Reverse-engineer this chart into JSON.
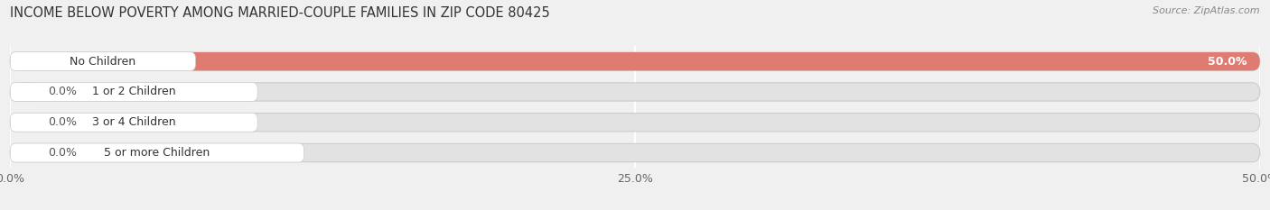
{
  "title": "INCOME BELOW POVERTY AMONG MARRIED-COUPLE FAMILIES IN ZIP CODE 80425",
  "source": "Source: ZipAtlas.com",
  "categories": [
    "No Children",
    "1 or 2 Children",
    "3 or 4 Children",
    "5 or more Children"
  ],
  "values": [
    50.0,
    0.0,
    0.0,
    0.0
  ],
  "bar_colors": [
    "#e07b72",
    "#a8b0d8",
    "#c0a8cc",
    "#80ccc8"
  ],
  "xlim": [
    0,
    50
  ],
  "xticks": [
    0,
    25.0,
    50.0
  ],
  "xticklabels": [
    "0.0%",
    "25.0%",
    "50.0%"
  ],
  "background_color": "#f0f0f0",
  "bar_background_color": "#e2e2e2",
  "title_fontsize": 10.5,
  "label_fontsize": 9,
  "tick_fontsize": 9,
  "source_fontsize": 8,
  "bar_height": 0.6,
  "value_label_color": "#555555"
}
